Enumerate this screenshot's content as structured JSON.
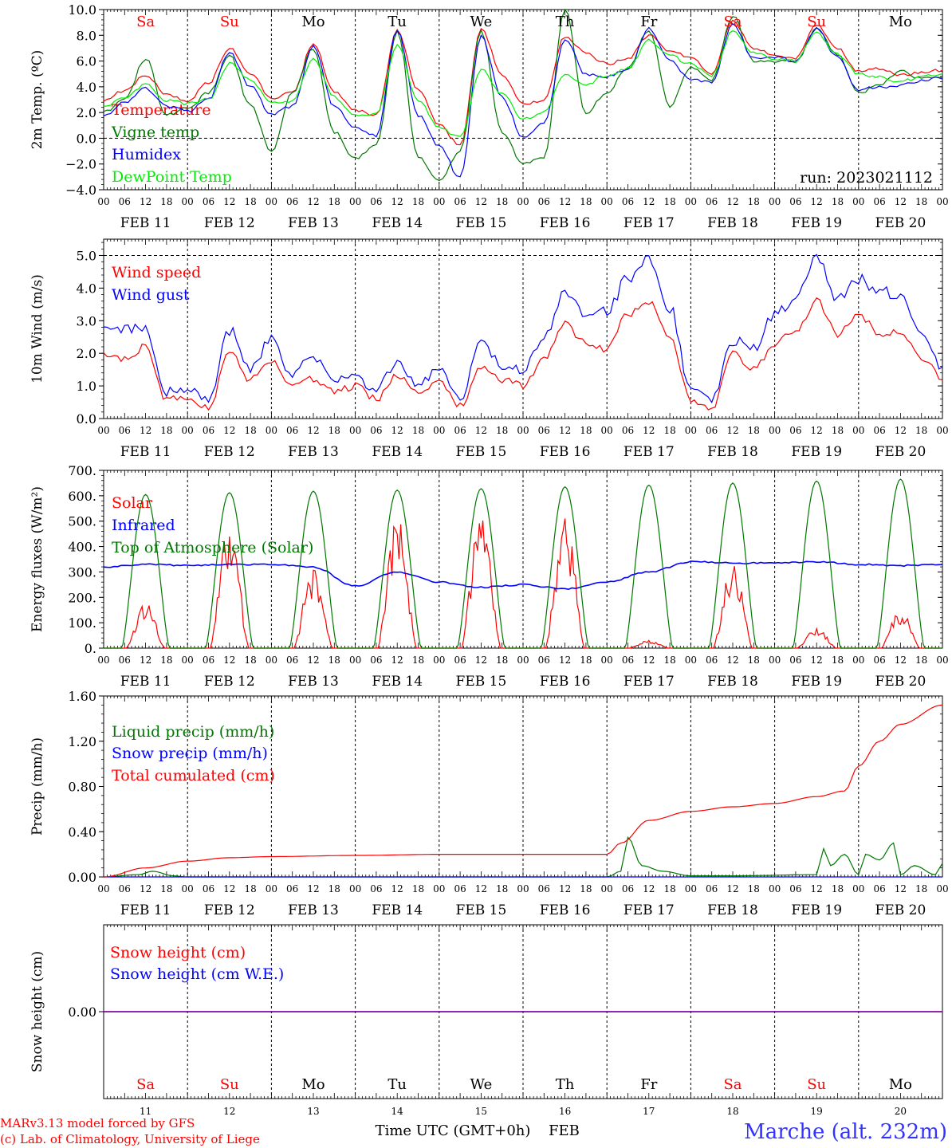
{
  "days": [
    "Sa",
    "Su",
    "Mo",
    "Tu",
    "We",
    "Th",
    "Fr",
    "Sa",
    "Su",
    "Mo"
  ],
  "day_colors": [
    "#ff0000",
    "#ff0000",
    "#000000",
    "#000000",
    "#000000",
    "#000000",
    "#000000",
    "#ff0000",
    "#ff0000",
    "#000000"
  ],
  "dates": [
    "FEB 11",
    "FEB 12",
    "FEB 13",
    "FEB 14",
    "FEB 15",
    "FEB 16",
    "FEB 17",
    "FEB 18",
    "FEB 19",
    "FEB 20"
  ],
  "day_numbers": [
    "11",
    "12",
    "13",
    "14",
    "15",
    "16",
    "17",
    "18",
    "19",
    "20"
  ],
  "hour_labels": [
    "00",
    "06",
    "12",
    "18"
  ],
  "run_label": "run: 2023021112",
  "footer": {
    "model": "MARv3.13 model forced by GFS",
    "credit": "(c) Lab. of Climatology, University of Liege",
    "time_axis": "Time UTC (GMT+0h)",
    "month": "FEB",
    "station": "Marche (alt. 232m)"
  },
  "chart_data": [
    {
      "type": "line",
      "ylabel": "2m Temp. (ºC)",
      "ylim": [
        -4,
        10
      ],
      "yticks": [
        "10.0",
        "8.0",
        "6.0",
        "4.0",
        "2.0",
        "0.0",
        "−2.0",
        "−4.0"
      ],
      "ytick_values": [
        10,
        8,
        6,
        4,
        2,
        0,
        -2,
        -4
      ],
      "zero_line": 0,
      "series": [
        {
          "name": "Temperature",
          "color": "#ff0000",
          "x": [
            0,
            6,
            12,
            18,
            24,
            30,
            36,
            42,
            48,
            54,
            60,
            66,
            72,
            78,
            84,
            90,
            96,
            102,
            108,
            114,
            120,
            126,
            132,
            138,
            144,
            150,
            156,
            162,
            168,
            174,
            180,
            186,
            192,
            198,
            204,
            210,
            216,
            222,
            228,
            234,
            240
          ],
          "y": [
            3.0,
            3.7,
            4.9,
            3.4,
            2.9,
            4.3,
            7.0,
            5.0,
            3.1,
            3.5,
            7.3,
            3.6,
            2.2,
            1.8,
            8.4,
            3.7,
            1.0,
            -0.6,
            8.5,
            5.0,
            2.6,
            2.9,
            7.9,
            6.6,
            5.8,
            6.2,
            8.0,
            6.8,
            6.2,
            5.0,
            9.1,
            6.9,
            6.5,
            6.2,
            8.8,
            7.0,
            5.2,
            5.4,
            4.9,
            5.1,
            5.3
          ]
        },
        {
          "name": "Vigne temp",
          "color": "#007700",
          "x": [
            0,
            6,
            12,
            18,
            24,
            30,
            36,
            42,
            48,
            54,
            60,
            66,
            72,
            78,
            84,
            90,
            96,
            102,
            108,
            114,
            120,
            126,
            132,
            138,
            144,
            150,
            156,
            162,
            168,
            174,
            180,
            186,
            192,
            198,
            204,
            210,
            216,
            222,
            228,
            234,
            240
          ],
          "y": [
            2.0,
            3.0,
            6.2,
            1.8,
            2.3,
            3.5,
            6.5,
            2.5,
            -1.0,
            3.5,
            7.0,
            0.5,
            -1.6,
            -0.5,
            8.3,
            -1.5,
            -3.3,
            -1.0,
            8.3,
            0.5,
            -2.0,
            -1.5,
            10.0,
            2.0,
            3.5,
            5.5,
            8.4,
            2.5,
            5.5,
            4.5,
            9.5,
            6.0,
            6.0,
            6.0,
            8.5,
            6.5,
            3.5,
            4.2,
            5.2,
            4.6,
            4.7
          ]
        },
        {
          "name": "Humidex",
          "color": "#0000ff",
          "x": [
            0,
            6,
            12,
            18,
            24,
            30,
            36,
            42,
            48,
            54,
            60,
            66,
            72,
            78,
            84,
            90,
            96,
            102,
            108,
            114,
            120,
            126,
            132,
            138,
            144,
            150,
            156,
            162,
            168,
            174,
            180,
            186,
            192,
            198,
            204,
            210,
            216,
            222,
            228,
            234,
            240
          ],
          "y": [
            1.7,
            2.8,
            3.9,
            2.5,
            2.1,
            3.0,
            6.7,
            4.0,
            1.8,
            2.5,
            7.1,
            2.5,
            0.8,
            0.2,
            8.4,
            1.8,
            -0.6,
            -3.1,
            7.9,
            3.2,
            0.1,
            1.2,
            7.6,
            5.0,
            4.8,
            5.3,
            8.5,
            6.0,
            4.5,
            4.4,
            8.8,
            6.2,
            6.3,
            6.0,
            8.5,
            6.3,
            3.8,
            4.0,
            4.1,
            4.5,
            4.7
          ]
        },
        {
          "name": "DewPoint Temp",
          "color": "#00ee00",
          "x": [
            0,
            6,
            12,
            18,
            24,
            30,
            36,
            42,
            48,
            54,
            60,
            66,
            72,
            78,
            84,
            90,
            96,
            102,
            108,
            114,
            120,
            126,
            132,
            138,
            144,
            150,
            156,
            162,
            168,
            174,
            180,
            186,
            192,
            198,
            204,
            210,
            216,
            222,
            228,
            234,
            240
          ],
          "y": [
            2.5,
            3.1,
            4.2,
            2.9,
            2.7,
            3.0,
            5.8,
            4.5,
            2.8,
            2.9,
            6.2,
            3.2,
            1.8,
            1.9,
            7.2,
            3.0,
            0.8,
            0.1,
            5.3,
            3.5,
            1.5,
            2.0,
            5.0,
            4.2,
            4.9,
            5.4,
            7.6,
            6.4,
            5.8,
            4.9,
            8.3,
            6.6,
            6.2,
            6.0,
            8.2,
            6.5,
            5.0,
            4.8,
            4.4,
            4.8,
            5.0
          ]
        }
      ]
    },
    {
      "type": "line",
      "ylabel": "10m Wind (m/s)",
      "ylim": [
        0,
        5.5
      ],
      "yticks": [
        "5.0",
        "4.0",
        "3.0",
        "2.0",
        "1.0",
        "0.0"
      ],
      "ytick_values": [
        5,
        4,
        3,
        2,
        1,
        0
      ],
      "dashed_at": 5.0,
      "series": [
        {
          "name": "Wind speed",
          "color": "#ff0000",
          "x": [
            0,
            6,
            12,
            18,
            24,
            30,
            36,
            42,
            48,
            54,
            60,
            66,
            72,
            78,
            84,
            90,
            96,
            102,
            108,
            114,
            120,
            126,
            132,
            138,
            144,
            150,
            156,
            162,
            168,
            174,
            180,
            186,
            192,
            198,
            204,
            210,
            216,
            222,
            228,
            234,
            240
          ],
          "y": [
            2.0,
            1.8,
            2.2,
            0.6,
            0.6,
            0.3,
            2.0,
            1.2,
            1.8,
            1.0,
            1.2,
            0.8,
            1.0,
            0.6,
            1.3,
            0.8,
            1.1,
            0.4,
            1.6,
            1.2,
            1.0,
            1.8,
            2.9,
            2.3,
            2.1,
            3.2,
            3.6,
            2.5,
            0.6,
            0.3,
            2.0,
            1.5,
            2.3,
            2.7,
            3.6,
            2.6,
            3.2,
            2.6,
            2.7,
            1.9,
            1.2
          ]
        },
        {
          "name": "Wind gust",
          "color": "#0000ff",
          "x": [
            0,
            6,
            12,
            18,
            24,
            30,
            36,
            42,
            48,
            54,
            60,
            66,
            72,
            78,
            84,
            90,
            96,
            102,
            108,
            114,
            120,
            126,
            132,
            138,
            144,
            150,
            156,
            162,
            168,
            174,
            180,
            186,
            192,
            198,
            204,
            210,
            216,
            222,
            228,
            234,
            240
          ],
          "y": [
            2.7,
            2.7,
            2.8,
            0.8,
            0.9,
            0.6,
            2.7,
            1.5,
            2.5,
            1.3,
            1.9,
            1.1,
            1.3,
            0.9,
            1.7,
            1.1,
            1.5,
            0.6,
            2.3,
            1.6,
            1.5,
            2.5,
            3.8,
            3.1,
            3.3,
            4.3,
            4.9,
            3.4,
            0.9,
            0.5,
            2.4,
            2.1,
            3.2,
            3.6,
            5.0,
            3.7,
            4.3,
            3.9,
            3.8,
            2.7,
            1.6
          ]
        }
      ]
    },
    {
      "type": "line",
      "ylabel": "Energy fluxes (W/m²)",
      "ylim": [
        0,
        700
      ],
      "yticks": [
        "700.",
        "600.",
        "500.",
        "400.",
        "300.",
        "200.",
        "100.",
        "0."
      ],
      "ytick_values": [
        700,
        600,
        500,
        400,
        300,
        200,
        100,
        0
      ],
      "series": [
        {
          "name": "Solar",
          "color": "#ff0000",
          "daily_peak_hour": 12,
          "daily_peaks": [
            145,
            390,
            255,
            415,
            435,
            415,
            25,
            270,
            65,
            120
          ]
        },
        {
          "name": "Infrared",
          "color": "#0000ff",
          "x": [
            0,
            12,
            24,
            36,
            48,
            60,
            72,
            84,
            96,
            108,
            120,
            132,
            144,
            156,
            168,
            180,
            192,
            204,
            216,
            228,
            240
          ],
          "y": [
            320,
            330,
            325,
            330,
            330,
            320,
            245,
            300,
            260,
            240,
            250,
            232,
            260,
            300,
            340,
            335,
            335,
            340,
            330,
            325,
            330
          ]
        },
        {
          "name": "Top of Atmosphere (Solar)",
          "color": "#007700",
          "daily_peak_hour": 12,
          "daily_peaks": [
            605,
            612,
            618,
            622,
            628,
            635,
            642,
            650,
            658,
            665
          ]
        }
      ]
    },
    {
      "type": "line",
      "ylabel": "Precip (mm/h)",
      "ylim": [
        0,
        1.6
      ],
      "yticks": [
        "1.60",
        "1.20",
        "0.80",
        "0.40",
        "0.00"
      ],
      "ytick_values": [
        1.6,
        1.2,
        0.8,
        0.4,
        0
      ],
      "series": [
        {
          "name": "Liquid precip (mm/h)",
          "color": "#007700",
          "x": [
            0,
            10,
            14,
            20,
            24,
            100,
            144,
            148,
            150,
            154,
            160,
            168,
            180,
            204,
            206,
            208,
            212,
            216,
            218,
            222,
            226,
            228,
            232,
            238,
            240
          ],
          "y": [
            0,
            0.02,
            0.05,
            0.01,
            0,
            0,
            0,
            0.05,
            0.35,
            0.1,
            0.05,
            0.01,
            0.01,
            0.02,
            0.25,
            0.1,
            0.2,
            0.02,
            0.2,
            0.15,
            0.3,
            0.02,
            0.1,
            0.02,
            0.12
          ]
        },
        {
          "name": "Snow precip (mm/h)",
          "color": "#0000ff",
          "x": [
            0,
            240
          ],
          "y": [
            0,
            0
          ]
        },
        {
          "name": "Total cumulated (cm)",
          "color": "#ff0000",
          "x": [
            0,
            12,
            24,
            36,
            48,
            72,
            96,
            120,
            144,
            148,
            156,
            168,
            180,
            192,
            204,
            212,
            216,
            222,
            228,
            240
          ],
          "y": [
            0,
            0.08,
            0.14,
            0.17,
            0.18,
            0.19,
            0.2,
            0.2,
            0.2,
            0.3,
            0.5,
            0.58,
            0.62,
            0.65,
            0.71,
            0.76,
            0.98,
            1.2,
            1.35,
            1.52
          ]
        }
      ]
    },
    {
      "type": "line",
      "ylabel": "Snow height (cm)",
      "ylim": [
        -1,
        1
      ],
      "yticks": [
        "0.00"
      ],
      "ytick_values": [
        0
      ],
      "series": [
        {
          "name": "Snow height (cm)",
          "color": "#ff0000",
          "x": [
            0,
            240
          ],
          "y": [
            0,
            0
          ]
        },
        {
          "name": "Snow height (cm W.E.)",
          "color": "#0000ff",
          "x": [
            0,
            240
          ],
          "y": [
            0,
            0
          ]
        }
      ]
    }
  ]
}
